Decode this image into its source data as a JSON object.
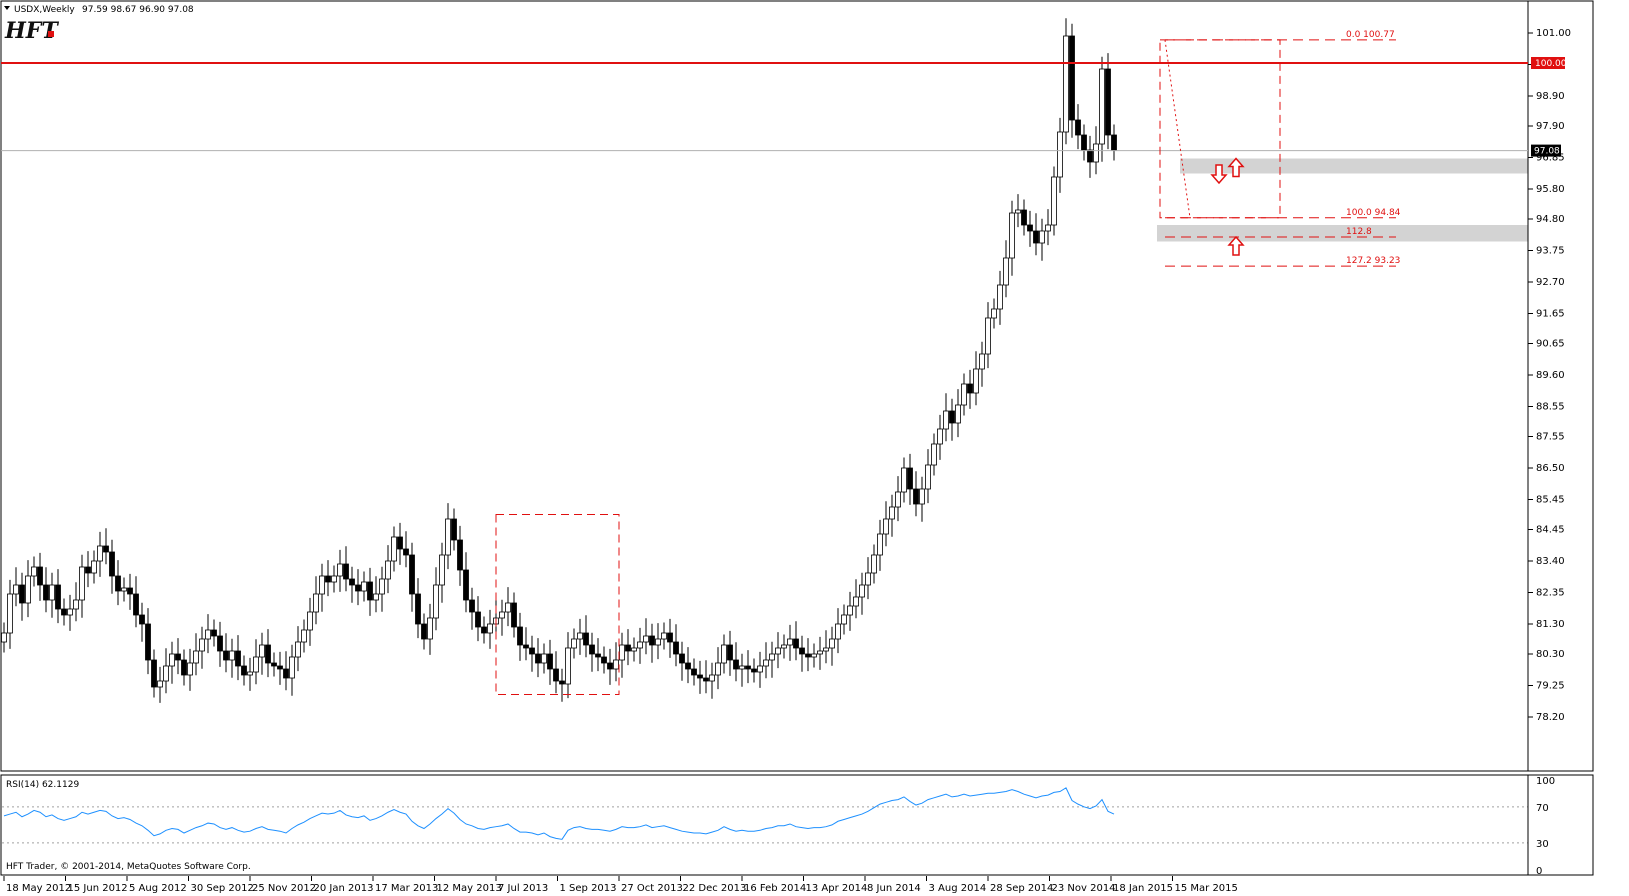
{
  "header": {
    "symbol": "USDX,Weekly",
    "ohlc": "97.59 98.67 96.90 97.08",
    "menu_icon": "triangle-down-icon"
  },
  "logo": {
    "text": "HFT",
    "dot_color": "#e01010"
  },
  "footer": "HFT Trader, © 2001-2014, MetaQuotes Software Corp.",
  "rsi_label": "RSI(14) 62.1129",
  "colors": {
    "candle_line": "#000000",
    "bull_fill": "#ffffff",
    "bear_fill": "#000000",
    "level_line": "#e01010",
    "fib_color": "#e01010",
    "zone_fill": "#d3d3d3",
    "rsi_line": "#1e90ff",
    "rsi_levels": "#a0a0a0"
  },
  "chart_data": {
    "type": "candlestick",
    "ylim": [
      78.26,
      101.4
    ],
    "yticks": [
      "101.00",
      "99.95",
      "98.90",
      "97.90",
      "96.85",
      "95.80",
      "94.80",
      "93.75",
      "92.70",
      "91.65",
      "90.65",
      "89.60",
      "88.55",
      "87.55",
      "86.50",
      "85.45",
      "84.45",
      "83.40",
      "82.35",
      "81.30",
      "80.30",
      "79.25",
      "78.20"
    ],
    "xticks": [
      "18 May 2012",
      "15 Jun 2012",
      "5 Aug 2012",
      "30 Sep 2012",
      "25 Nov 2012",
      "20 Jan 2013",
      "17 Mar 2013",
      "12 May 2013",
      "7 Jul 2013",
      "1 Sep 2013",
      "27 Oct 2013",
      "22 Dec 2013",
      "16 Feb 2014",
      "13 Apr 2014",
      "8 Jun 2014",
      "3 Aug 2014",
      "28 Sep 2014",
      "23 Nov 2014",
      "18 Jan 2015",
      "15 Mar 2015"
    ],
    "current_price": "97.08",
    "resistance_level": "100.00",
    "fib_labels": [
      {
        "level": "0.0",
        "price": "100.77"
      },
      {
        "level": "100.0",
        "price": "94.84"
      },
      {
        "level": "112.8",
        "price": ""
      },
      {
        "level": "127.2",
        "price": "93.23"
      }
    ],
    "closes": [
      81.0,
      82.3,
      82.6,
      82.0,
      82.9,
      83.2,
      82.6,
      82.1,
      82.6,
      81.8,
      81.6,
      81.8,
      82.1,
      83.2,
      83.0,
      83.4,
      83.9,
      83.7,
      82.9,
      82.4,
      82.5,
      82.3,
      81.6,
      81.3,
      80.1,
      79.2,
      79.4,
      79.9,
      80.3,
      80.1,
      79.6,
      80.0,
      80.4,
      80.8,
      81.1,
      80.9,
      80.4,
      80.1,
      80.4,
      79.9,
      79.6,
      79.7,
      80.2,
      80.6,
      80.0,
      79.9,
      79.8,
      79.5,
      80.2,
      80.7,
      81.1,
      81.7,
      82.3,
      82.9,
      82.7,
      82.9,
      83.3,
      82.8,
      82.6,
      82.4,
      82.7,
      82.1,
      82.3,
      82.8,
      83.4,
      84.2,
      83.8,
      83.6,
      82.3,
      81.3,
      80.8,
      81.5,
      82.6,
      83.6,
      84.8,
      84.1,
      83.1,
      82.1,
      81.7,
      81.2,
      81.0,
      81.3,
      81.5,
      81.7,
      82.0,
      81.2,
      80.6,
      80.5,
      80.3,
      80.0,
      80.3,
      79.8,
      79.4,
      79.3,
      80.5,
      80.8,
      81.0,
      80.6,
      80.3,
      80.2,
      80.0,
      79.8,
      80.1,
      80.6,
      80.4,
      80.5,
      80.7,
      80.9,
      80.6,
      80.8,
      81.0,
      80.7,
      80.3,
      80.0,
      79.8,
      79.6,
      79.5,
      79.4,
      79.6,
      80.0,
      80.6,
      80.1,
      79.8,
      79.9,
      79.8,
      79.7,
      79.9,
      80.1,
      80.3,
      80.5,
      80.6,
      80.8,
      80.5,
      80.3,
      80.2,
      80.3,
      80.4,
      80.5,
      80.8,
      81.3,
      81.6,
      81.9,
      82.2,
      82.6,
      83.0,
      83.6,
      84.3,
      84.8,
      85.2,
      85.7,
      86.5,
      85.8,
      85.3,
      85.8,
      86.6,
      87.3,
      87.8,
      88.4,
      88.0,
      88.6,
      89.3,
      89.0,
      89.8,
      90.3,
      91.5,
      91.8,
      92.6,
      93.5,
      95.0,
      95.1,
      94.6,
      94.4,
      94.0,
      94.4,
      94.6,
      96.2,
      97.7,
      100.9,
      98.1,
      97.6,
      97.1,
      96.7,
      97.3,
      99.8,
      97.6,
      97.1
    ],
    "rsi": {
      "levels": [
        30,
        70
      ],
      "scale_labels": [
        "100",
        "70",
        "30",
        "0"
      ],
      "values": [
        60,
        62,
        64,
        59,
        62,
        66,
        64,
        59,
        61,
        57,
        55,
        57,
        59,
        64,
        62,
        64,
        66,
        65,
        60,
        57,
        58,
        56,
        52,
        49,
        44,
        38,
        40,
        44,
        46,
        45,
        41,
        44,
        47,
        49,
        52,
        51,
        47,
        45,
        47,
        44,
        42,
        43,
        46,
        48,
        45,
        44,
        43,
        41,
        46,
        50,
        53,
        57,
        60,
        63,
        62,
        63,
        66,
        61,
        59,
        58,
        60,
        55,
        57,
        60,
        64,
        67,
        64,
        62,
        54,
        49,
        46,
        51,
        57,
        62,
        68,
        63,
        56,
        51,
        49,
        46,
        45,
        47,
        48,
        49,
        51,
        46,
        42,
        42,
        41,
        39,
        41,
        37,
        35,
        34,
        44,
        47,
        48,
        46,
        45,
        45,
        44,
        43,
        45,
        48,
        47,
        47,
        48,
        50,
        47,
        48,
        49,
        47,
        45,
        43,
        42,
        41,
        41,
        40,
        42,
        44,
        48,
        45,
        43,
        44,
        43,
        43,
        44,
        46,
        47,
        49,
        49,
        51,
        48,
        47,
        46,
        47,
        47,
        48,
        50,
        54,
        56,
        58,
        60,
        62,
        65,
        69,
        73,
        75,
        77,
        78,
        81,
        76,
        72,
        74,
        78,
        80,
        82,
        84,
        81,
        82,
        84,
        82,
        83,
        84,
        85,
        85,
        86,
        87,
        89,
        87,
        84,
        82,
        80,
        82,
        83,
        86,
        87,
        91,
        77,
        73,
        70,
        68,
        71,
        78,
        65,
        62
      ]
    }
  }
}
